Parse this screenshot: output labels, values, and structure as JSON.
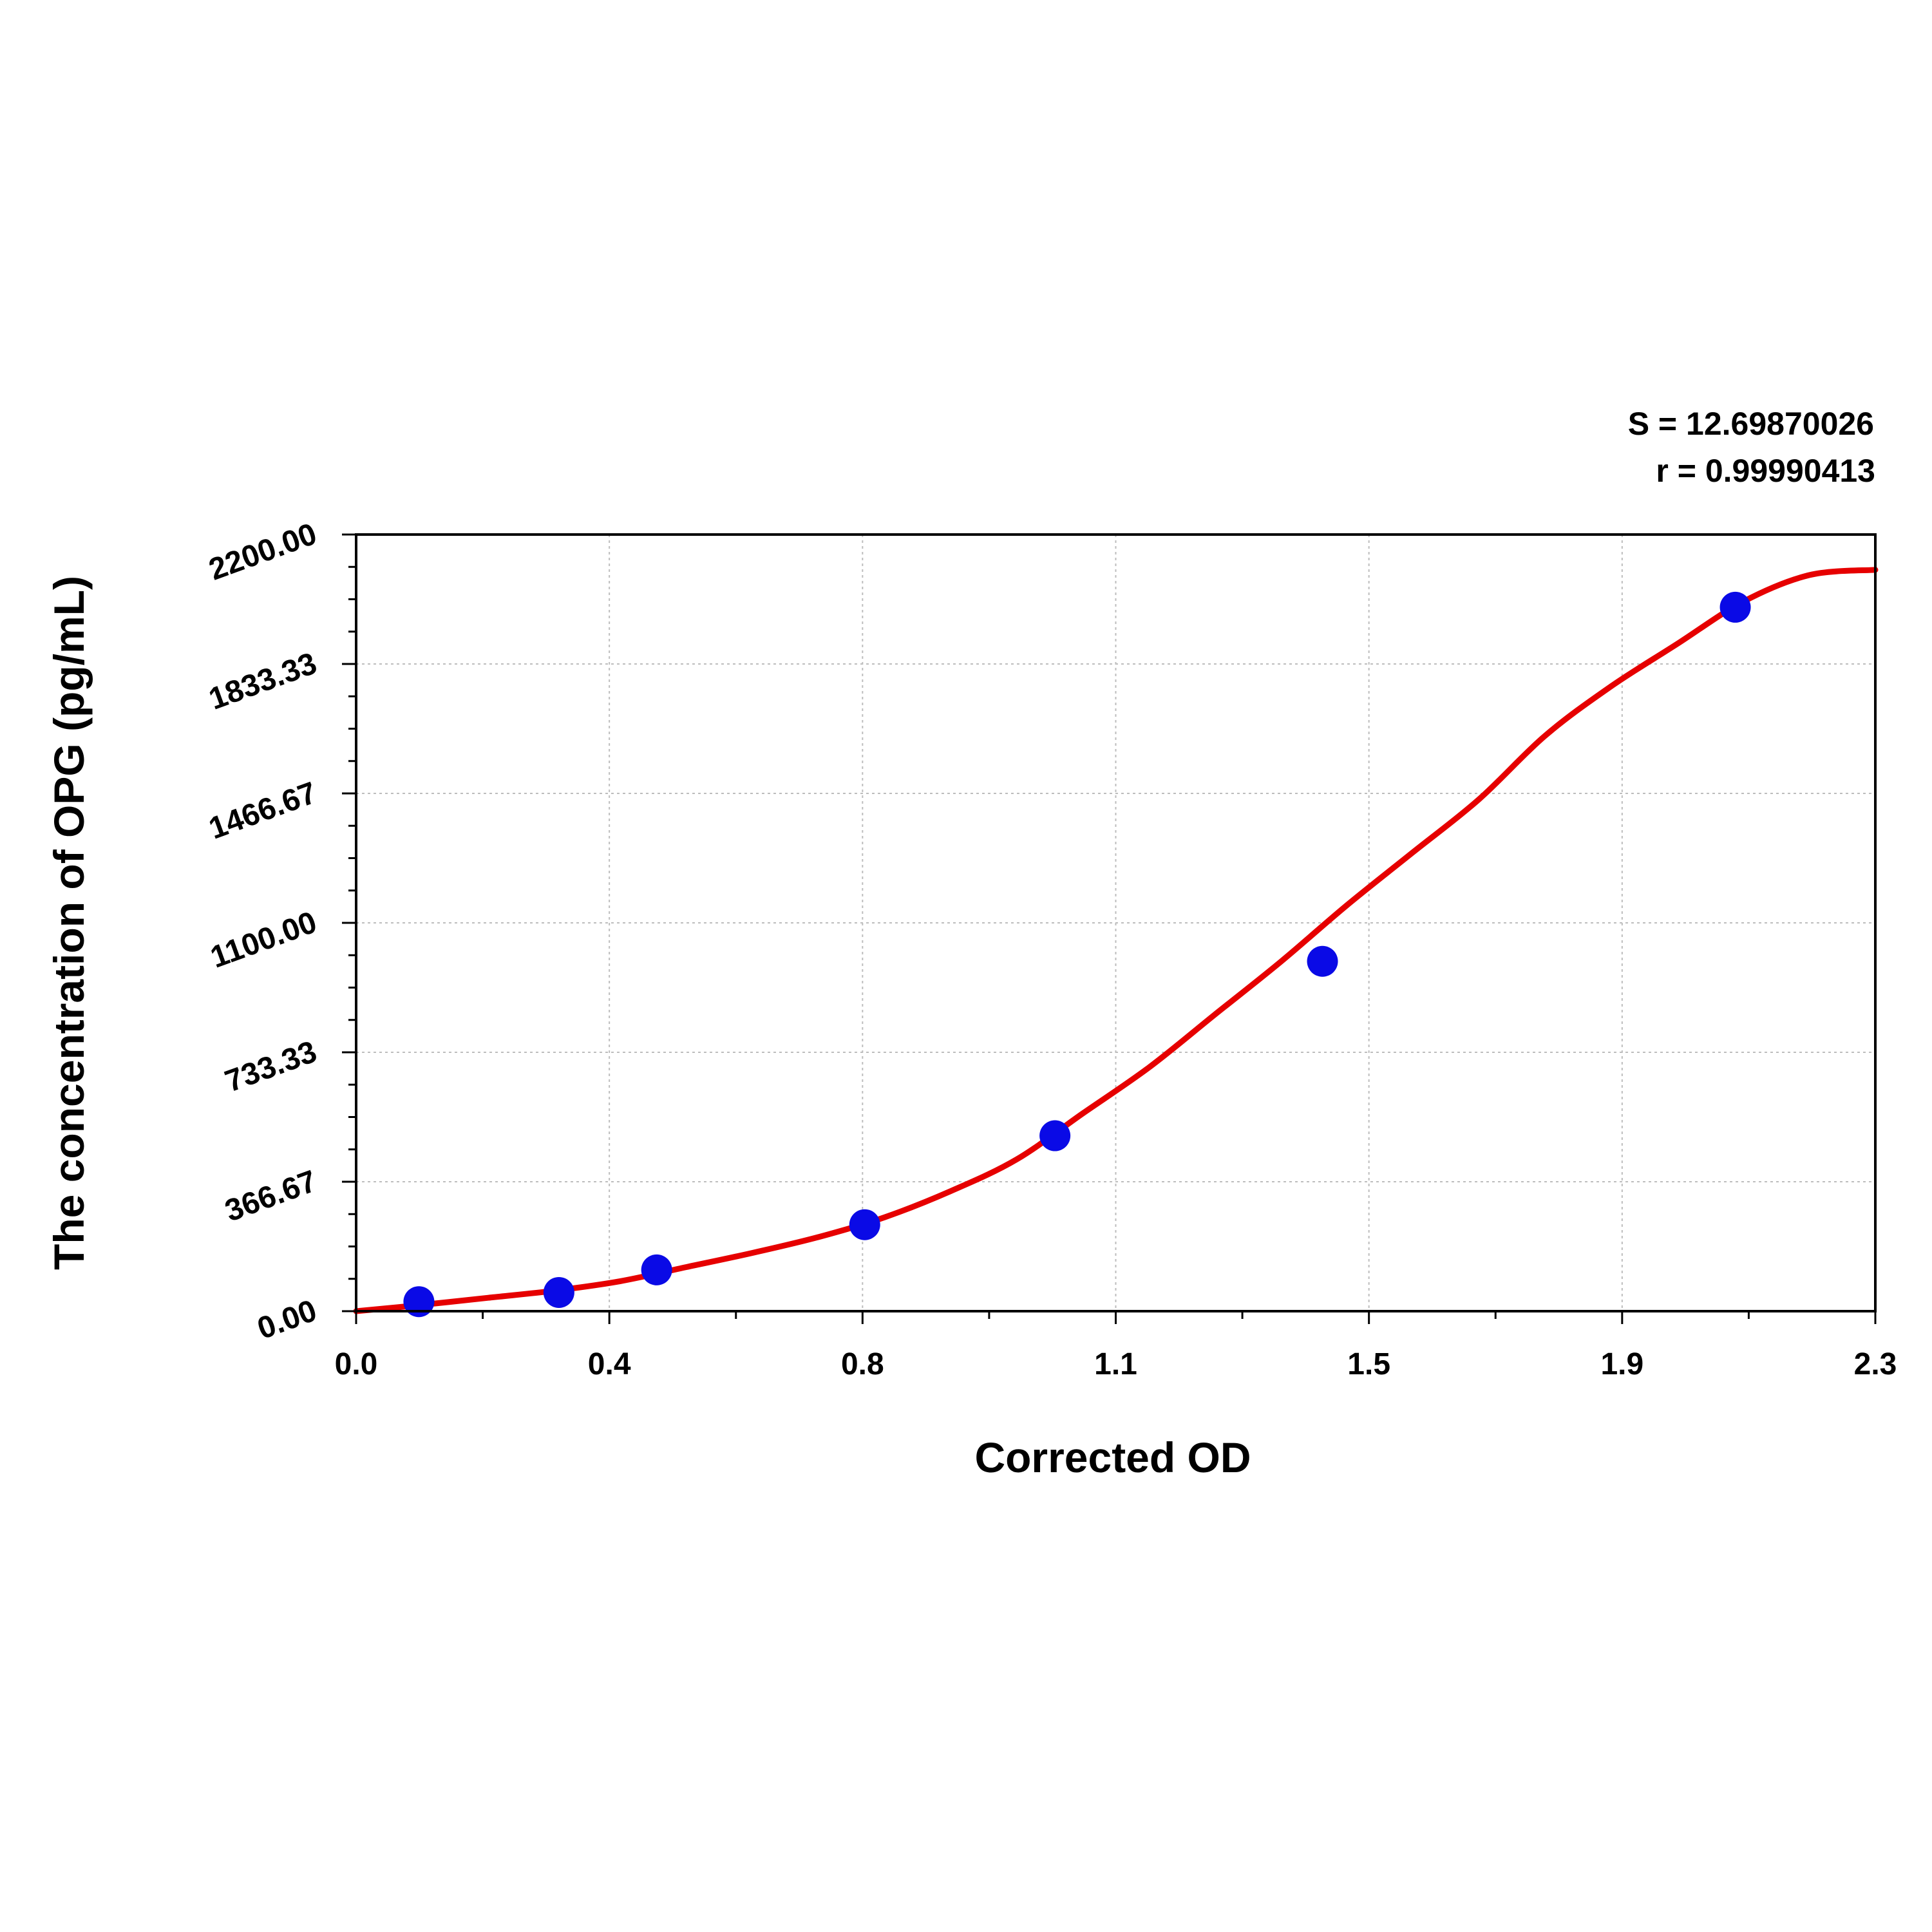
{
  "stats": {
    "s_line": "S = 12.69870026",
    "r_line": "r = 0.99990413"
  },
  "chart_data": {
    "type": "scatter",
    "xlabel": "Corrected OD",
    "ylabel": "The concentration of OPG (pg/mL)",
    "xlim": [
      0.0,
      2.3
    ],
    "ylim": [
      0.0,
      2200.0
    ],
    "x_ticks": [
      "0.0",
      "0.4",
      "0.8",
      "1.1",
      "1.5",
      "1.9",
      "2.3"
    ],
    "y_ticks": [
      "0.00",
      "366.67",
      "733.33",
      "1100.00",
      "1466.67",
      "1833.33",
      "2200.00"
    ],
    "grid": true,
    "points": {
      "x": [
        0.095,
        0.307,
        0.455,
        0.77,
        1.058,
        1.463,
        2.088
      ],
      "y": [
        27,
        53,
        117,
        245,
        497,
        991,
        1994
      ]
    },
    "fit_curve": {
      "x": [
        0.0,
        0.1,
        0.2,
        0.3,
        0.4,
        0.5,
        0.6,
        0.7,
        0.8,
        0.9,
        1.0,
        1.1,
        1.2,
        1.3,
        1.4,
        1.5,
        1.6,
        1.7,
        1.8,
        1.9,
        2.0,
        2.1,
        2.2,
        2.3
      ],
      "y": [
        0,
        18,
        38,
        58,
        85,
        125,
        165,
        210,
        266,
        340,
        430,
        560,
        690,
        840,
        990,
        1150,
        1300,
        1450,
        1630,
        1770,
        1890,
        2010,
        2085,
        2100
      ]
    },
    "colors": {
      "points": "#0a0ae6",
      "curve": "#e60000"
    }
  }
}
